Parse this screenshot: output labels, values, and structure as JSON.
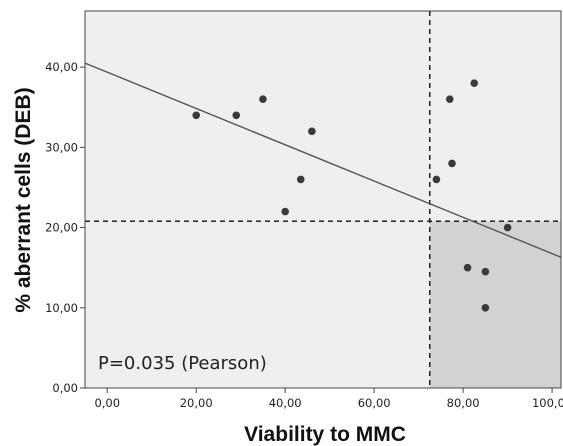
{
  "chart_data": {
    "type": "scatter",
    "xlabel": "Viability to MMC",
    "ylabel": "% aberrant cells  (DEB)",
    "xlim": [
      -5,
      102
    ],
    "ylim": [
      0,
      47
    ],
    "x_ticks": [
      "0,00",
      "20,00",
      "40,00",
      "60,00",
      "80,00",
      "100,00"
    ],
    "x_tick_values": [
      0,
      20,
      40,
      60,
      80,
      100
    ],
    "y_ticks": [
      "0,00",
      "10,00",
      "20,00",
      "30,00",
      "40,00"
    ],
    "y_tick_values": [
      0,
      10,
      20,
      30,
      40
    ],
    "points": [
      {
        "x": 20,
        "y": 34
      },
      {
        "x": 29,
        "y": 34
      },
      {
        "x": 35,
        "y": 36
      },
      {
        "x": 40,
        "y": 22
      },
      {
        "x": 43.5,
        "y": 26
      },
      {
        "x": 46,
        "y": 32
      },
      {
        "x": 74,
        "y": 26
      },
      {
        "x": 77,
        "y": 36
      },
      {
        "x": 77.5,
        "y": 28
      },
      {
        "x": 81,
        "y": 15
      },
      {
        "x": 82.5,
        "y": 38
      },
      {
        "x": 85,
        "y": 14.5
      },
      {
        "x": 85,
        "y": 10
      },
      {
        "x": 90,
        "y": 20
      }
    ],
    "regression_line": {
      "x": [
        -5,
        102
      ],
      "y": [
        40.5,
        16.3
      ]
    },
    "threshold_x": 72.5,
    "threshold_y": 20.8,
    "shaded_quadrant": "bottom-right",
    "annotation": "P=0.035 (Pearson)",
    "colors": {
      "plot_background": "#efefef",
      "shaded_region": "#d2d2d2",
      "points": "#3a3a3a",
      "regression_line": "#555555",
      "threshold_lines": "#111111"
    },
    "grid": false
  }
}
